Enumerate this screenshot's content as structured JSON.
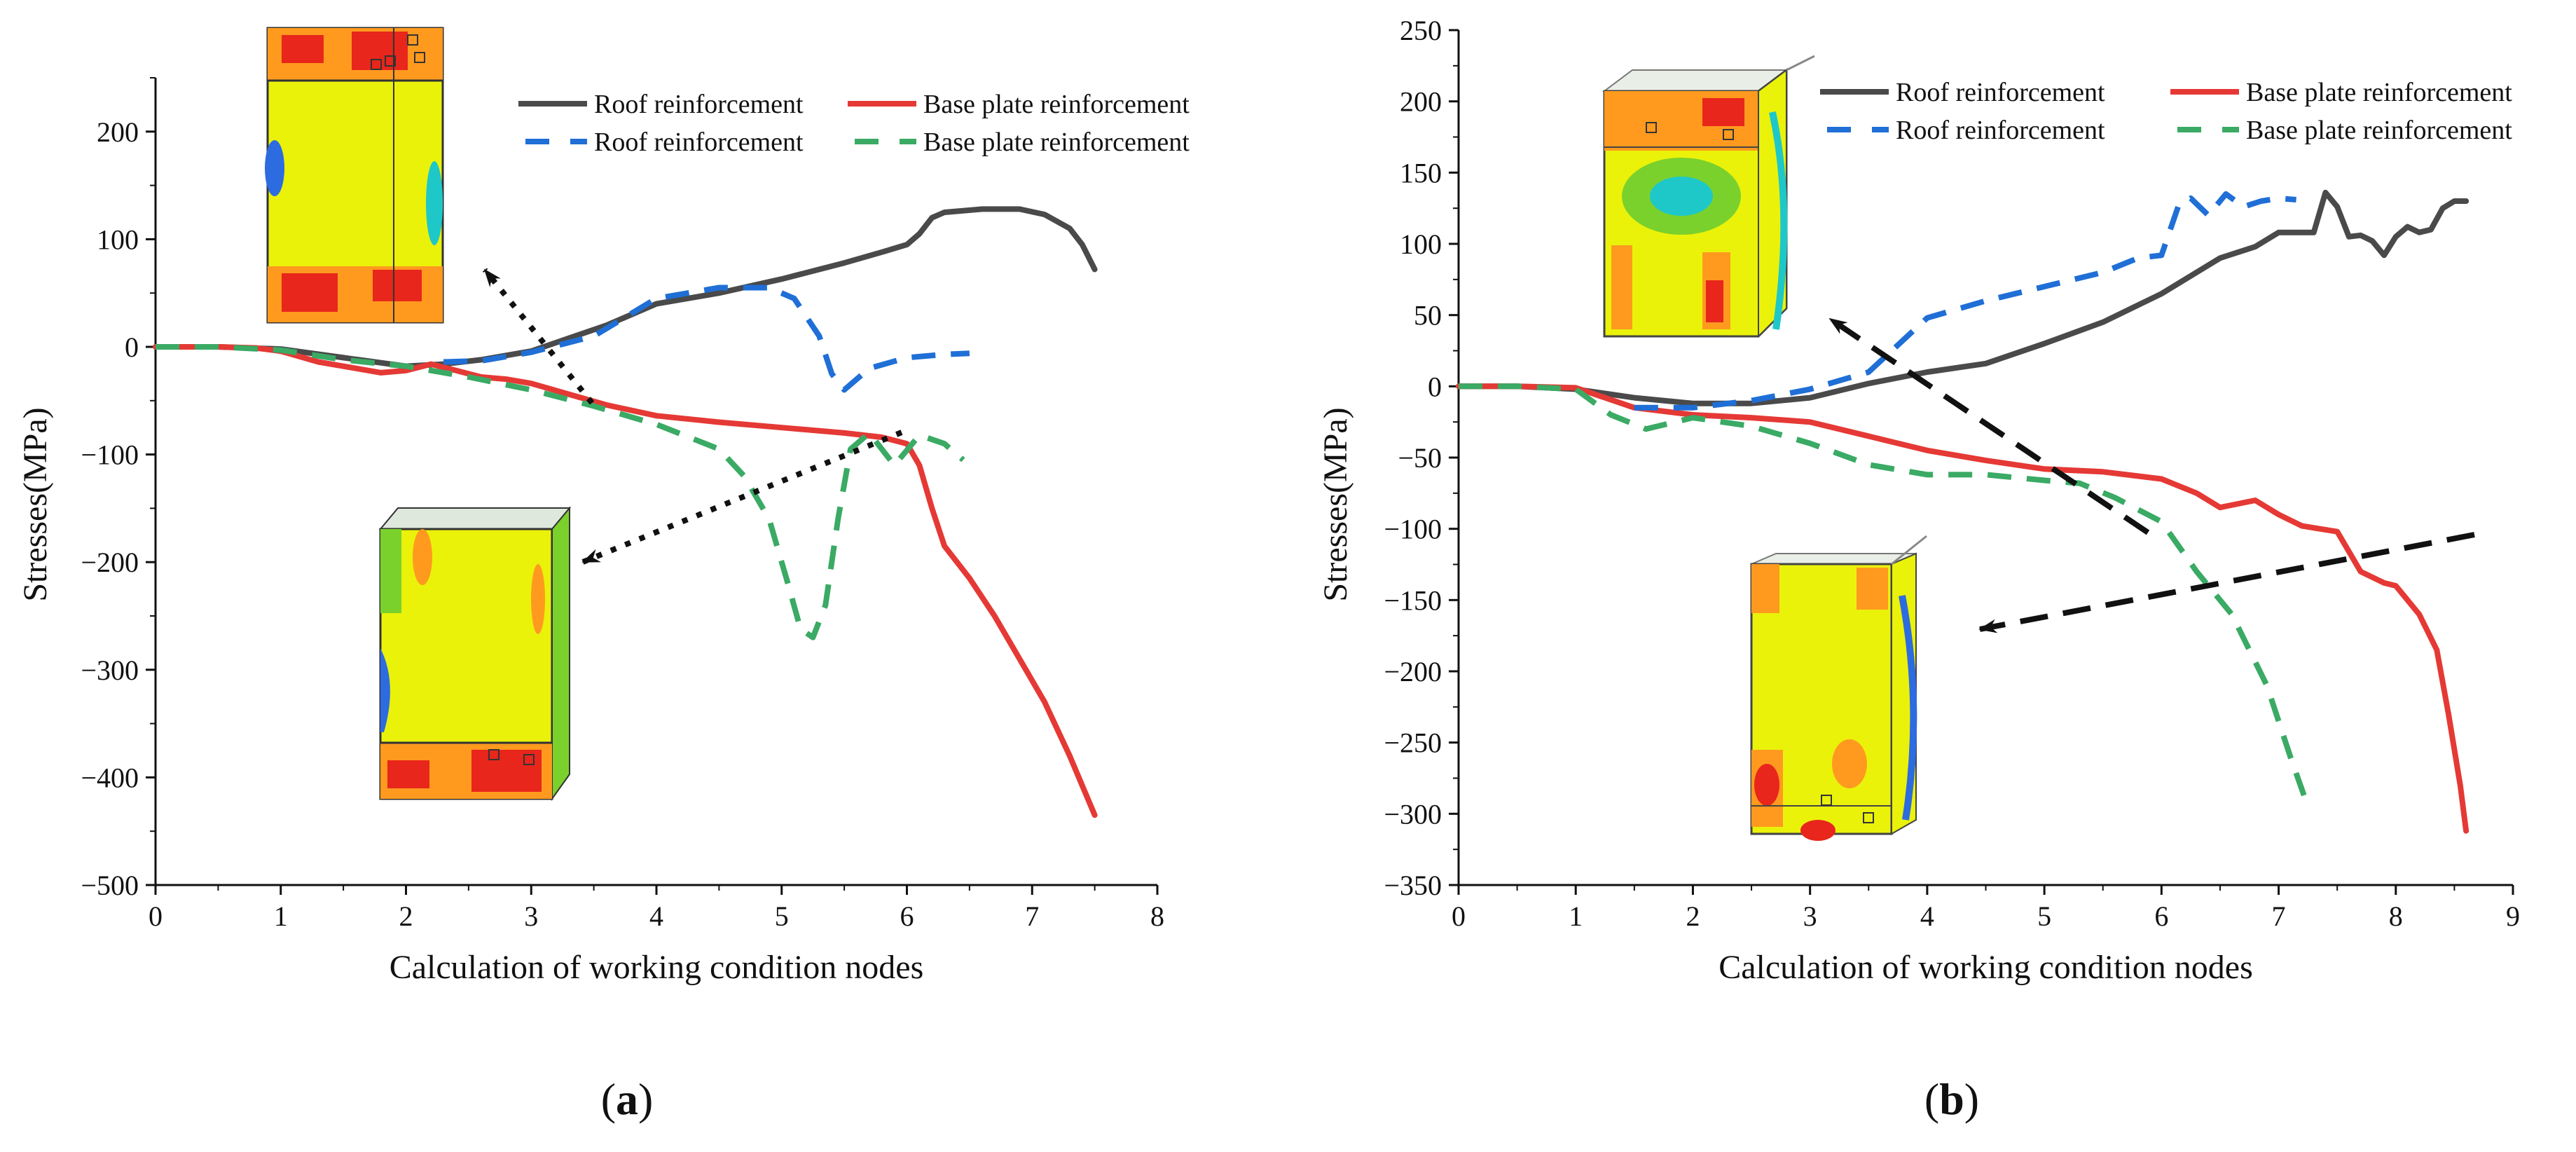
{
  "figure": {
    "panels": [
      {
        "id": "a",
        "label_open": "(",
        "label_letter": "a",
        "label_close": ")"
      },
      {
        "id": "b",
        "label_open": "(",
        "label_letter": "b",
        "label_close": ")"
      }
    ]
  },
  "colors": {
    "roof_solid": "#4a4a4a",
    "base_solid": "#e53935",
    "roof_dashed": "#1f6fd6",
    "base_dashed": "#3aaa64",
    "axis": "#111111",
    "arrow": "#111111",
    "fem_yellow": "#eaf20a",
    "fem_green": "#7bd12c",
    "fem_orange": "#ff9a1f",
    "fem_red": "#e8261b",
    "fem_blue": "#2d6be0",
    "fem_cyan": "#1ec8c8"
  },
  "chart_data": [
    {
      "type": "line",
      "xlabel": "Calculation of working condition nodes",
      "ylabel": "Stresses(MPa)",
      "xlim": [
        0,
        8
      ],
      "ylim": [
        -500,
        250
      ],
      "xticks": [
        0,
        1,
        2,
        3,
        4,
        5,
        6,
        7,
        8
      ],
      "yticks": [
        -500,
        -400,
        -300,
        -200,
        -100,
        0,
        100,
        200
      ],
      "legend_position": "top-right",
      "series": [
        {
          "name": "Roof reinforcement",
          "style": "solid",
          "color_key": "roof_solid",
          "x": [
            0,
            0.5,
            1.0,
            1.5,
            2.0,
            2.3,
            2.6,
            3.0,
            3.3,
            3.6,
            4.0,
            4.5,
            5.0,
            5.5,
            5.8,
            6.0,
            6.1,
            6.2,
            6.3,
            6.6,
            6.9,
            7.1,
            7.3,
            7.4,
            7.5
          ],
          "y": [
            0,
            0,
            -2,
            -10,
            -18,
            -16,
            -12,
            -4,
            8,
            20,
            40,
            50,
            63,
            78,
            88,
            95,
            105,
            120,
            125,
            128,
            128,
            123,
            110,
            95,
            72
          ]
        },
        {
          "name": "Base plate reinforcement",
          "style": "solid",
          "color_key": "base_solid",
          "x": [
            0,
            0.5,
            0.8,
            1.0,
            1.3,
            1.6,
            1.8,
            2.0,
            2.2,
            2.4,
            2.6,
            2.8,
            3.0,
            3.3,
            3.6,
            4.0,
            4.5,
            5.0,
            5.5,
            5.8,
            6.0,
            6.1,
            6.2,
            6.3,
            6.5,
            6.7,
            6.9,
            7.1,
            7.3,
            7.5
          ],
          "y": [
            0,
            0,
            -1,
            -4,
            -14,
            -20,
            -24,
            -22,
            -16,
            -22,
            -28,
            -30,
            -34,
            -44,
            -54,
            -64,
            -70,
            -75,
            -80,
            -84,
            -90,
            -110,
            -150,
            -185,
            -215,
            -250,
            -290,
            -330,
            -380,
            -435
          ]
        },
        {
          "name": "Roof reinforcement",
          "style": "dashed",
          "color_key": "roof_dashed",
          "x": [
            2.3,
            2.6,
            3.0,
            3.5,
            4.0,
            4.5,
            4.9,
            5.1,
            5.3,
            5.4,
            5.5,
            5.7,
            6.0,
            6.3,
            6.5
          ],
          "y": [
            -14,
            -13,
            -5,
            10,
            45,
            55,
            55,
            45,
            10,
            -25,
            -40,
            -20,
            -10,
            -7,
            -6
          ]
        },
        {
          "name": "Base plate reinforcement",
          "style": "dashed",
          "color_key": "base_dashed",
          "x": [
            0,
            0.5,
            1.0,
            1.5,
            2.0,
            2.5,
            3.0,
            3.5,
            4.0,
            4.5,
            4.7,
            4.9,
            5.05,
            5.15,
            5.25,
            5.35,
            5.45,
            5.55,
            5.7,
            5.9,
            6.1,
            6.3,
            6.45
          ],
          "y": [
            0,
            0,
            -3,
            -12,
            -18,
            -28,
            -40,
            -55,
            -72,
            -95,
            -120,
            -160,
            -220,
            -262,
            -270,
            -240,
            -160,
            -95,
            -80,
            -110,
            -82,
            -90,
            -105
          ]
        }
      ]
    },
    {
      "type": "line",
      "xlabel": "Calculation of working condition nodes",
      "ylabel": "Stresses(MPa)",
      "xlim": [
        0,
        9
      ],
      "ylim": [
        -350,
        250
      ],
      "xticks": [
        0,
        1,
        2,
        3,
        4,
        5,
        6,
        7,
        8,
        9
      ],
      "yticks": [
        -350,
        -300,
        -250,
        -200,
        -150,
        -100,
        -50,
        0,
        50,
        100,
        150,
        200,
        250
      ],
      "legend_position": "top-right",
      "series": [
        {
          "name": "Roof reinforcement",
          "style": "solid",
          "color_key": "roof_solid",
          "x": [
            0,
            0.5,
            1.0,
            1.5,
            2.0,
            2.5,
            3.0,
            3.5,
            4.0,
            4.5,
            5.0,
            5.5,
            6.0,
            6.5,
            6.8,
            7.0,
            7.2,
            7.3,
            7.4,
            7.5,
            7.6,
            7.7,
            7.8,
            7.9,
            8.0,
            8.1,
            8.2,
            8.3,
            8.4,
            8.5,
            8.6
          ],
          "y": [
            0,
            0,
            -2,
            -8,
            -12,
            -12,
            -8,
            2,
            10,
            16,
            30,
            45,
            65,
            90,
            98,
            108,
            108,
            108,
            136,
            126,
            105,
            106,
            102,
            92,
            105,
            112,
            108,
            110,
            125,
            130,
            130
          ]
        },
        {
          "name": "Base plate reinforcement",
          "style": "solid",
          "color_key": "base_solid",
          "x": [
            0,
            0.5,
            1.0,
            1.5,
            2.0,
            2.5,
            3.0,
            3.5,
            4.0,
            4.5,
            5.0,
            5.5,
            6.0,
            6.3,
            6.5,
            6.8,
            7.0,
            7.2,
            7.5,
            7.7,
            7.9,
            8.0,
            8.2,
            8.35,
            8.45,
            8.55,
            8.6
          ],
          "y": [
            0,
            0,
            -1,
            -15,
            -20,
            -22,
            -25,
            -35,
            -45,
            -52,
            -58,
            -60,
            -65,
            -75,
            -85,
            -80,
            -90,
            -98,
            -102,
            -130,
            -138,
            -140,
            -160,
            -185,
            -230,
            -280,
            -312
          ]
        },
        {
          "name": "Roof reinforcement",
          "style": "dashed",
          "color_key": "roof_dashed",
          "x": [
            1.5,
            2.0,
            2.5,
            3.0,
            3.5,
            4.0,
            4.5,
            5.0,
            5.5,
            5.8,
            6.0,
            6.15,
            6.25,
            6.4,
            6.55,
            6.7,
            6.85,
            7.0,
            7.15
          ],
          "y": [
            -15,
            -15,
            -10,
            -2,
            10,
            48,
            60,
            70,
            80,
            90,
            92,
            128,
            132,
            120,
            135,
            126,
            130,
            132,
            131
          ]
        },
        {
          "name": "Base plate reinforcement",
          "style": "dashed",
          "color_key": "base_dashed",
          "x": [
            0,
            0.5,
            1.0,
            1.3,
            1.6,
            2.0,
            2.5,
            3.0,
            3.5,
            4.0,
            4.5,
            5.0,
            5.3,
            5.6,
            6.0,
            6.3,
            6.6,
            6.9,
            7.1,
            7.25
          ],
          "y": [
            0,
            0,
            -2,
            -20,
            -30,
            -22,
            -28,
            -40,
            -55,
            -62,
            -62,
            -66,
            -68,
            -78,
            -95,
            -130,
            -160,
            -210,
            -260,
            -295
          ]
        }
      ]
    }
  ]
}
